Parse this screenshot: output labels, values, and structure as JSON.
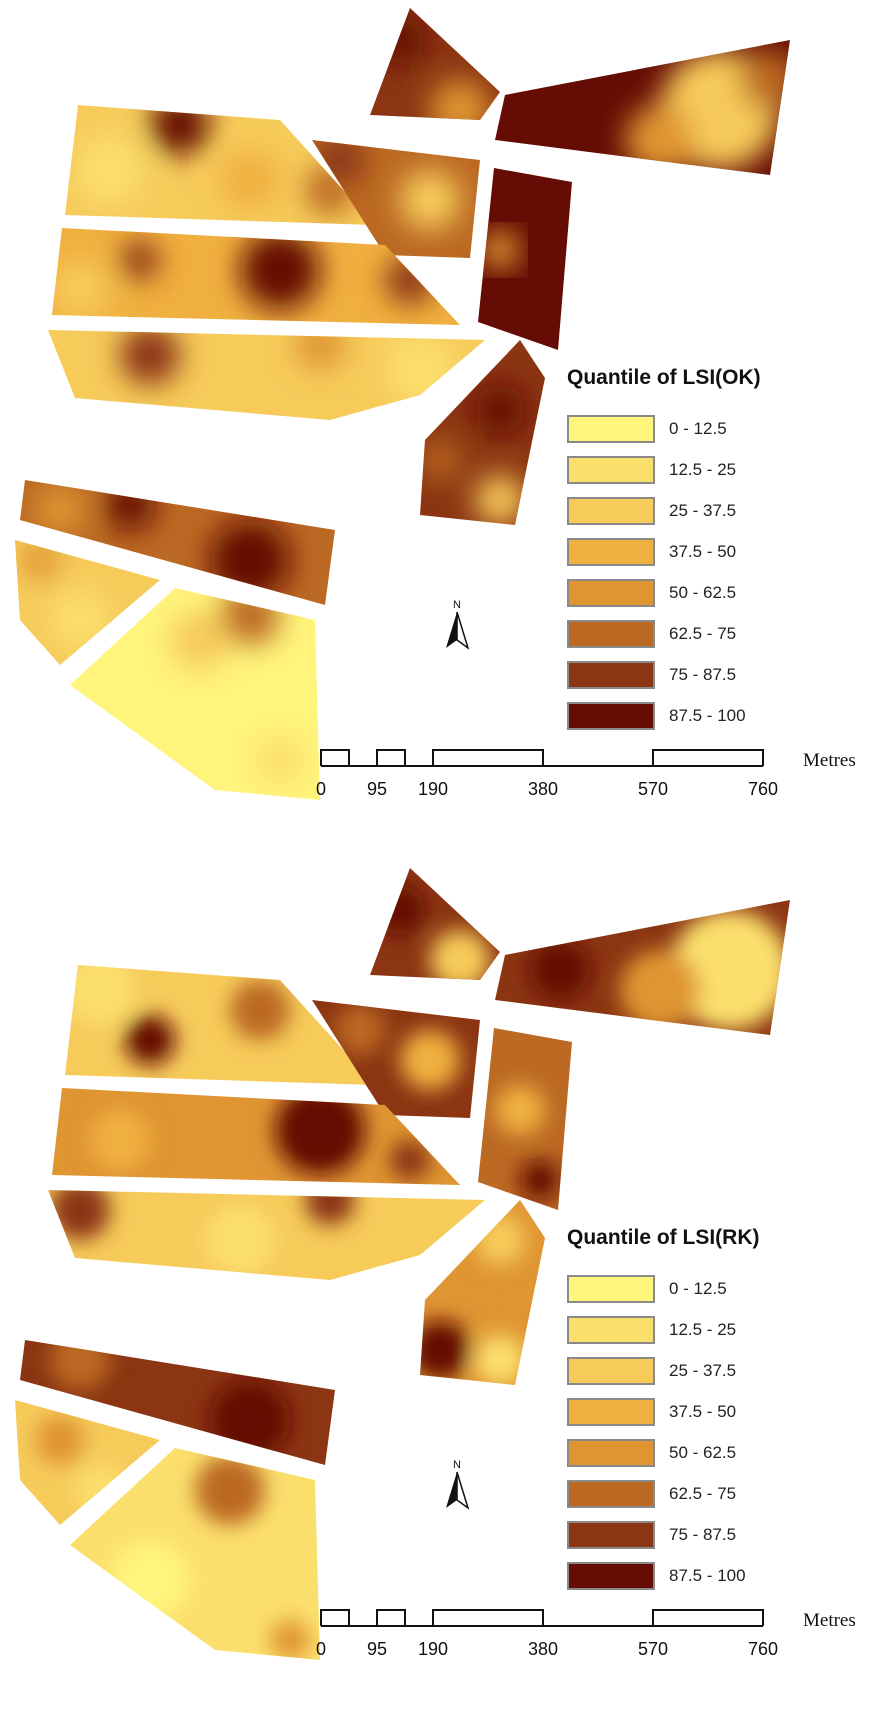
{
  "maps": [
    {
      "legend_title": "Quantile of LSI(OK)",
      "legend": [
        {
          "label": "0 - 12.5",
          "color": "#fff47c"
        },
        {
          "label": "12.5 - 25",
          "color": "#fbdf6d"
        },
        {
          "label": "25 - 37.5",
          "color": "#f6cb5a"
        },
        {
          "label": "37.5 - 50",
          "color": "#f0b03f"
        },
        {
          "label": "50 - 62.5",
          "color": "#df9532"
        },
        {
          "label": "62.5 - 75",
          "color": "#bb6923"
        },
        {
          "label": "75 - 87.5",
          "color": "#8b3512"
        },
        {
          "label": "87.5 - 100",
          "color": "#650c04"
        }
      ],
      "north_label": "N",
      "scale_labels": [
        "0",
        "95",
        "190",
        "380",
        "570",
        "760"
      ],
      "scale_unit": "Metres"
    },
    {
      "legend_title": "Quantile of LSI(RK)",
      "legend": [
        {
          "label": "0 - 12.5",
          "color": "#fff47c"
        },
        {
          "label": "12.5 - 25",
          "color": "#fbdf6d"
        },
        {
          "label": "25 - 37.5",
          "color": "#f6cb5a"
        },
        {
          "label": "37.5 - 50",
          "color": "#f0b03f"
        },
        {
          "label": "50 - 62.5",
          "color": "#df9532"
        },
        {
          "label": "62.5 - 75",
          "color": "#bb6923"
        },
        {
          "label": "75 - 87.5",
          "color": "#8b3512"
        },
        {
          "label": "87.5 - 100",
          "color": "#650c04"
        }
      ],
      "north_label": "N",
      "scale_labels": [
        "0",
        "95",
        "190",
        "380",
        "570",
        "760"
      ],
      "scale_unit": "Metres"
    }
  ]
}
